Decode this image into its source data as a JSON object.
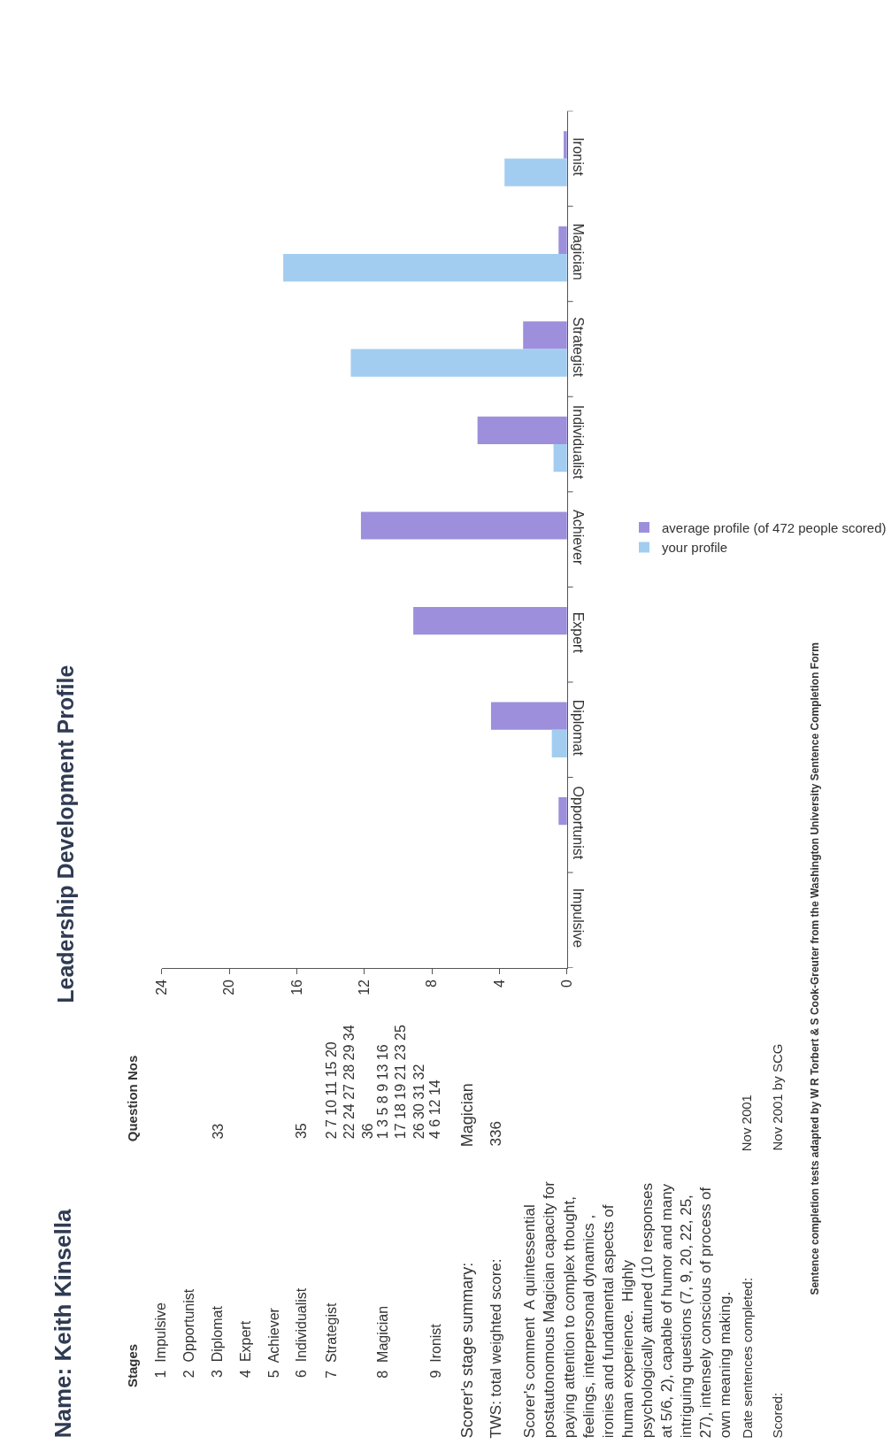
{
  "chart_data": {
    "type": "bar",
    "title": "Leadership Development Profile",
    "subtitle": "Name: Keith Kinsella",
    "orientation": "horizontal",
    "categories": [
      "Ironist",
      "Magician",
      "Strategist",
      "Individualist",
      "Achiever",
      "Expert",
      "Diplomat",
      "Opportunist",
      "Impulsive"
    ],
    "series": [
      {
        "name": "average profile (of 472 people scored)",
        "color": "#9d8fdb",
        "values": [
          0.2,
          0.5,
          2.6,
          5.3,
          12.2,
          9.1,
          4.5,
          0.5,
          0
        ]
      },
      {
        "name": "your profile",
        "color": "#a3cdf0",
        "values": [
          3.7,
          16.8,
          12.8,
          0.8,
          0,
          0,
          0.9,
          0,
          0
        ]
      }
    ],
    "xlim": [
      24,
      0
    ],
    "xticks": [
      0,
      4,
      8,
      12,
      16,
      20,
      24
    ],
    "grid": false,
    "legend": "right",
    "annotations": [
      "Stages",
      "Question Nos",
      "1  Impulsive",
      "2  Opportunist",
      "3  Diplomat",
      "33",
      "4  Expert",
      "5  Achiever",
      "6  Individualist",
      "35",
      "7  Strategist",
      "2 7 10 11 15 20\n22 24 27 28 29 34\n36",
      "8  Magician",
      "1 3 5 8 9 13 16\n17 18 19 21 23 25\n26 30 31 32",
      "9  Ironist",
      "4 6 12 14",
      "Scorer's stage summary:",
      "Magician",
      "TWS: total weighted score:",
      "336",
      "Scorer's comment  A quintessential\npostautonomous Magician capacity for\npaying attention to complex thought,\nfeelings, interpersonal dynamics ,\nironies and fundamental aspects of\nhuman experience.  Highly\npsychologically attuned (10 responses\nat 5/6, 2), capable of humor and many\nintriguing questions (7, 9, 20, 22, 25,\n27), intensely conscious of process of\nown meaning making.",
      "Date sentences completed:",
      "Nov 2001",
      "Scored:",
      "Nov 2001 by SCG",
      "Sentence completion tests adapted by W R Torbert & S Cook-Greuter from the Washington University Sentence Completion Form"
    ]
  }
}
